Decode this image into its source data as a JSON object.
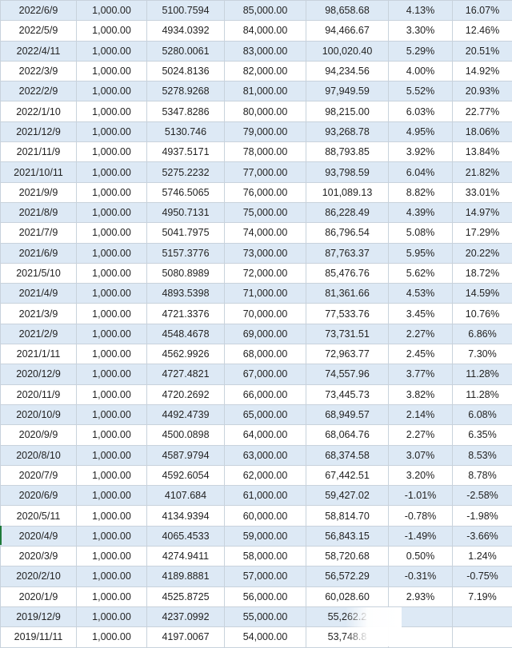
{
  "rows": [
    [
      "2022/6/9",
      "1,000.00",
      "5100.7594",
      "85,000.00",
      "98,658.68",
      "4.13%",
      "16.07%"
    ],
    [
      "2022/5/9",
      "1,000.00",
      "4934.0392",
      "84,000.00",
      "94,466.67",
      "3.30%",
      "12.46%"
    ],
    [
      "2022/4/11",
      "1,000.00",
      "5280.0061",
      "83,000.00",
      "100,020.40",
      "5.29%",
      "20.51%"
    ],
    [
      "2022/3/9",
      "1,000.00",
      "5024.8136",
      "82,000.00",
      "94,234.56",
      "4.00%",
      "14.92%"
    ],
    [
      "2022/2/9",
      "1,000.00",
      "5278.9268",
      "81,000.00",
      "97,949.59",
      "5.52%",
      "20.93%"
    ],
    [
      "2022/1/10",
      "1,000.00",
      "5347.8286",
      "80,000.00",
      "98,215.00",
      "6.03%",
      "22.77%"
    ],
    [
      "2021/12/9",
      "1,000.00",
      "5130.746",
      "79,000.00",
      "93,268.78",
      "4.95%",
      "18.06%"
    ],
    [
      "2021/11/9",
      "1,000.00",
      "4937.5171",
      "78,000.00",
      "88,793.85",
      "3.92%",
      "13.84%"
    ],
    [
      "2021/10/11",
      "1,000.00",
      "5275.2232",
      "77,000.00",
      "93,798.59",
      "6.04%",
      "21.82%"
    ],
    [
      "2021/9/9",
      "1,000.00",
      "5746.5065",
      "76,000.00",
      "101,089.13",
      "8.82%",
      "33.01%"
    ],
    [
      "2021/8/9",
      "1,000.00",
      "4950.7131",
      "75,000.00",
      "86,228.49",
      "4.39%",
      "14.97%"
    ],
    [
      "2021/7/9",
      "1,000.00",
      "5041.7975",
      "74,000.00",
      "86,796.54",
      "5.08%",
      "17.29%"
    ],
    [
      "2021/6/9",
      "1,000.00",
      "5157.3776",
      "73,000.00",
      "87,763.37",
      "5.95%",
      "20.22%"
    ],
    [
      "2021/5/10",
      "1,000.00",
      "5080.8989",
      "72,000.00",
      "85,476.76",
      "5.62%",
      "18.72%"
    ],
    [
      "2021/4/9",
      "1,000.00",
      "4893.5398",
      "71,000.00",
      "81,361.66",
      "4.53%",
      "14.59%"
    ],
    [
      "2021/3/9",
      "1,000.00",
      "4721.3376",
      "70,000.00",
      "77,533.76",
      "3.45%",
      "10.76%"
    ],
    [
      "2021/2/9",
      "1,000.00",
      "4548.4678",
      "69,000.00",
      "73,731.51",
      "2.27%",
      "6.86%"
    ],
    [
      "2021/1/11",
      "1,000.00",
      "4562.9926",
      "68,000.00",
      "72,963.77",
      "2.45%",
      "7.30%"
    ],
    [
      "2020/12/9",
      "1,000.00",
      "4727.4821",
      "67,000.00",
      "74,557.96",
      "3.77%",
      "11.28%"
    ],
    [
      "2020/11/9",
      "1,000.00",
      "4720.2692",
      "66,000.00",
      "73,445.73",
      "3.82%",
      "11.28%"
    ],
    [
      "2020/10/9",
      "1,000.00",
      "4492.4739",
      "65,000.00",
      "68,949.57",
      "2.14%",
      "6.08%"
    ],
    [
      "2020/9/9",
      "1,000.00",
      "4500.0898",
      "64,000.00",
      "68,064.76",
      "2.27%",
      "6.35%"
    ],
    [
      "2020/8/10",
      "1,000.00",
      "4587.9794",
      "63,000.00",
      "68,374.58",
      "3.07%",
      "8.53%"
    ],
    [
      "2020/7/9",
      "1,000.00",
      "4592.6054",
      "62,000.00",
      "67,442.51",
      "3.20%",
      "8.78%"
    ],
    [
      "2020/6/9",
      "1,000.00",
      "4107.684",
      "61,000.00",
      "59,427.02",
      "-1.01%",
      "-2.58%"
    ],
    [
      "2020/5/11",
      "1,000.00",
      "4134.9394",
      "60,000.00",
      "58,814.70",
      "-0.78%",
      "-1.98%"
    ],
    [
      "2020/4/9",
      "1,000.00",
      "4065.4533",
      "59,000.00",
      "56,843.15",
      "-1.49%",
      "-3.66%"
    ],
    [
      "2020/3/9",
      "1,000.00",
      "4274.9411",
      "58,000.00",
      "58,720.68",
      "0.50%",
      "1.24%"
    ],
    [
      "2020/2/10",
      "1,000.00",
      "4189.8881",
      "57,000.00",
      "56,572.29",
      "-0.31%",
      "-0.75%"
    ],
    [
      "2020/1/9",
      "1,000.00",
      "4525.8725",
      "56,000.00",
      "60,028.60",
      "2.93%",
      "7.19%"
    ],
    [
      "2019/12/9",
      "1,000.00",
      "4237.0992",
      "55,000.00",
      "55,262.2",
      "",
      ""
    ],
    [
      "2019/11/11",
      "1,000.00",
      "4197.0067",
      "54,000.00",
      "53,748.8",
      "",
      ""
    ]
  ]
}
